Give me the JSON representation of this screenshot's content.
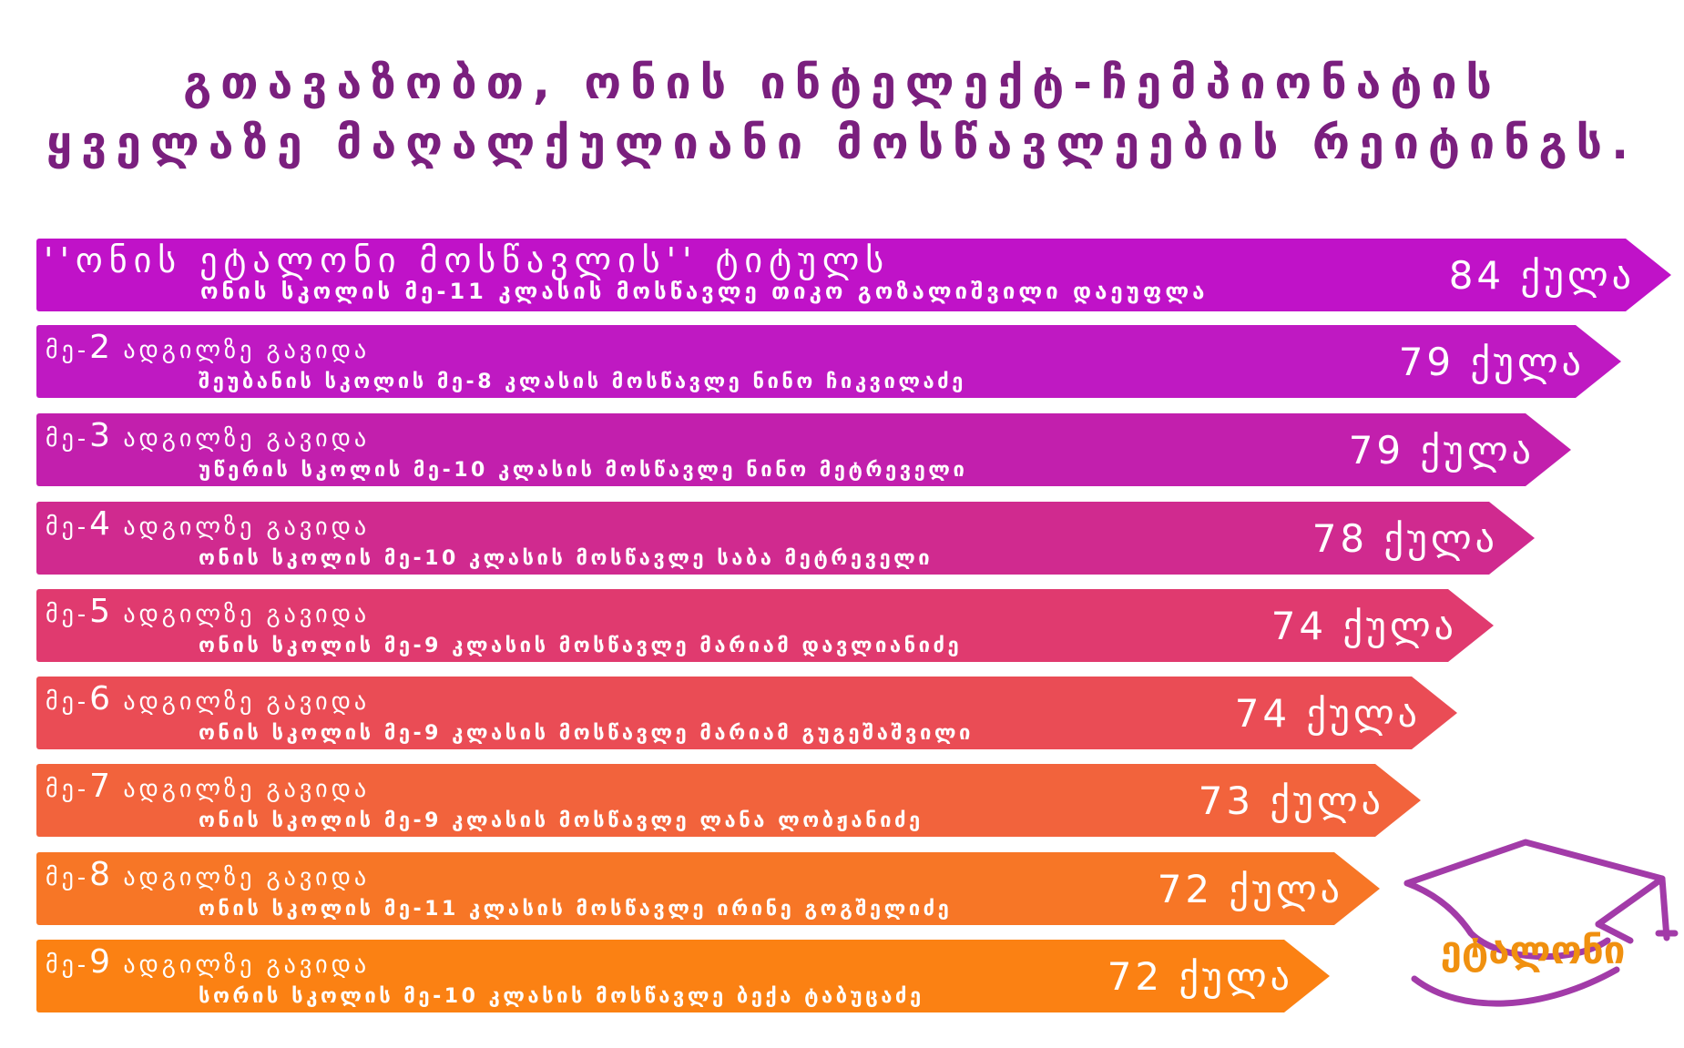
{
  "title": {
    "line1": "გთავაზობთ, ონის ინტელექტ-ჩემპიონატის",
    "line2": "ყველაზე მაღალქულიანი მოსწავლეების რეიტინგს."
  },
  "ranking": [
    {
      "line1": "''ონის ეტალონი მოსწავლის'' ტიტულს",
      "line2": "ონის სკოლის მე-11 კლასის მოსწავლე თიკო გოზალიშვილი დაეუფლა",
      "score": "84 ქულა",
      "color": "#c012c8"
    },
    {
      "line1_prefix": "მე-",
      "rank": "2",
      "line1_suffix": " ადგილზე გავიდა",
      "line2": "შეუბანის სკოლის მე-8 კლასის მოსწავლე ნინო ჩიკვილაძე",
      "score": "79 ქულა",
      "color": "#bf19c2"
    },
    {
      "line1_prefix": "მე-",
      "rank": "3",
      "line1_suffix": " ადგილზე გავიდა",
      "line2": "უწერის  სკოლის მე-10 კლასის მოსწავლე ნინო მეტრეველი",
      "score": "79 ქულა",
      "color": "#c21fad"
    },
    {
      "line1_prefix": "მე-",
      "rank": "4",
      "line1_suffix": " ადგილზე გავიდა",
      "line2": "ონის სკოლის მე-10 კლასის მოსწავლე საბა მეტრეველი",
      "score": "78 ქულა",
      "color": "#d02a8f"
    },
    {
      "line1_prefix": "მე-",
      "rank": "5",
      "line1_suffix": " ადგილზე გავიდა",
      "line2": "ონის სკოლის მე-9 კლასის მოსწავლე მარიამ დავლიანიძე",
      "score": "74 ქულა",
      "color": "#e03a6f"
    },
    {
      "line1_prefix": "მე-",
      "rank": "6",
      "line1_suffix": " ადგილზე გავიდა",
      "line2": "ონის სკოლის მე-9 კლასის მოსწავლე მარიამ გუგეშაშვილი",
      "score": "74 ქულა",
      "color": "#ea4c55"
    },
    {
      "line1_prefix": "მე-",
      "rank": "7",
      "line1_suffix": " ადგილზე გავიდა",
      "line2": "ონის სკოლის მე-9 კლასის მოსწავლე ლანა ლობჟანიძე",
      "score": "73 ქულა",
      "color": "#f2633c"
    },
    {
      "line1_prefix": "მე-",
      "rank": "8",
      "line1_suffix": " ადგილზე გავიდა",
      "line2": "ონის სკოლის მე-11 კლასის მოსწავლე ირინე გოგშელიძე",
      "score": "72 ქულა",
      "color": "#f77626"
    },
    {
      "line1_prefix": "მე-",
      "rank": "9",
      "line1_suffix": " ადგილზე გავიდა",
      "line2": "სორის სკოლის მე-10 კლასის მოსწავლე ბექა ტაბუცაძე",
      "score": "72 ქულა",
      "color": "#fb8113"
    }
  ],
  "logo": {
    "text": "ეტალონი",
    "text_color": "#f0900f",
    "cap_color": "#a23ba8"
  }
}
